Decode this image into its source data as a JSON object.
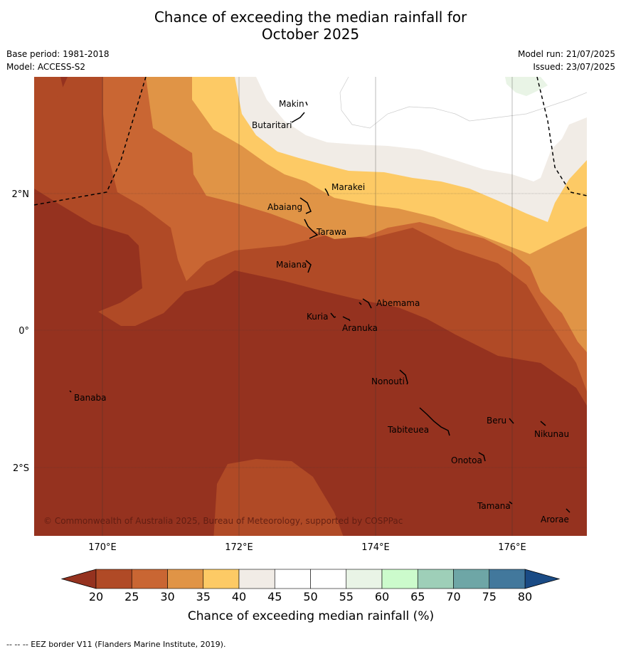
{
  "title_line1": "Chance of exceeding the median rainfall for",
  "title_line2": "October 2025",
  "base_period": "Base period: 1981-2018",
  "model": "Model: ACCESS-S2",
  "model_run": "Model run: 21/07/2025",
  "issued": "Issued: 23/07/2025",
  "lat_labels": [
    "2°N",
    "0°",
    "2°S"
  ],
  "lon_labels": [
    "170°E",
    "172°E",
    "174°E",
    "176°E"
  ],
  "places": [
    "Makin",
    "Butaritari",
    "Marakei",
    "Abaiang",
    "Tarawa",
    "Maiana",
    "Abemama",
    "Kuria",
    "Aranuka",
    "Nonouti",
    "Banaba",
    "Beru",
    "Nikunau",
    "Tabiteuea",
    "Onotoa",
    "Tamana",
    "Arorae"
  ],
  "copyright": "© Commonwealth of Australia 2025, Bureau of Meteorology, supported by COSPPac",
  "colorbar": {
    "ticks": [
      "20",
      "25",
      "30",
      "35",
      "40",
      "45",
      "50",
      "55",
      "60",
      "65",
      "70",
      "75",
      "80"
    ],
    "under_color": "#95321f",
    "over_color": "#1a4b85",
    "colors": [
      "#b04a26",
      "#c96633",
      "#e09446",
      "#fdca65",
      "#f1ece6",
      "#ffffff",
      "#ffffff",
      "#e9f4e6",
      "#ccfbcc",
      "#9ecfb8",
      "#6ea6a6",
      "#42789c"
    ],
    "label": "Chance of exceeding median rainfall (%)"
  },
  "footer": "--  --  -- EEZ border V11 (Flanders Marine Institute, 2019)."
}
